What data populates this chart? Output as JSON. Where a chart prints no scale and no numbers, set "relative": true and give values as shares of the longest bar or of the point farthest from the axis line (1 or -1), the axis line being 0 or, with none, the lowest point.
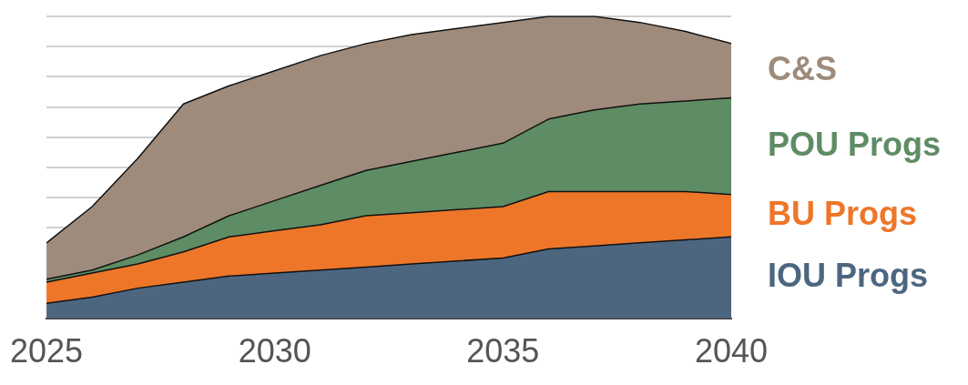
{
  "chart_data": {
    "type": "area",
    "stacked": true,
    "relative": true,
    "grid": "y",
    "legend": false,
    "x": [
      2025,
      2026,
      2027,
      2028,
      2029,
      2030,
      2031,
      2032,
      2033,
      2034,
      2035,
      2036,
      2037,
      2038,
      2039,
      2040
    ],
    "xlim": [
      2025,
      2040
    ],
    "xticks": [
      2025,
      2030,
      2035,
      2040
    ],
    "series": [
      {
        "name": "IOU Progs",
        "color": "#4d6680",
        "values": [
          0.05,
          0.07,
          0.1,
          0.12,
          0.14,
          0.15,
          0.16,
          0.17,
          0.18,
          0.19,
          0.2,
          0.23,
          0.24,
          0.25,
          0.26,
          0.27
        ]
      },
      {
        "name": "BU Progs",
        "color": "#ee7629",
        "values": [
          0.07,
          0.08,
          0.08,
          0.1,
          0.13,
          0.14,
          0.15,
          0.17,
          0.17,
          0.17,
          0.17,
          0.19,
          0.18,
          0.17,
          0.16,
          0.14
        ]
      },
      {
        "name": "POU Progs",
        "color": "#5e8c64",
        "values": [
          0.01,
          0.01,
          0.03,
          0.05,
          0.07,
          0.1,
          0.13,
          0.15,
          0.17,
          0.19,
          0.21,
          0.24,
          0.27,
          0.29,
          0.3,
          0.32
        ]
      },
      {
        "name": "C&S",
        "color": "#9e8b7b",
        "values": [
          0.12,
          0.21,
          0.32,
          0.44,
          0.43,
          0.43,
          0.43,
          0.42,
          0.42,
          0.41,
          0.4,
          0.34,
          0.31,
          0.27,
          0.23,
          0.18
        ]
      }
    ]
  }
}
